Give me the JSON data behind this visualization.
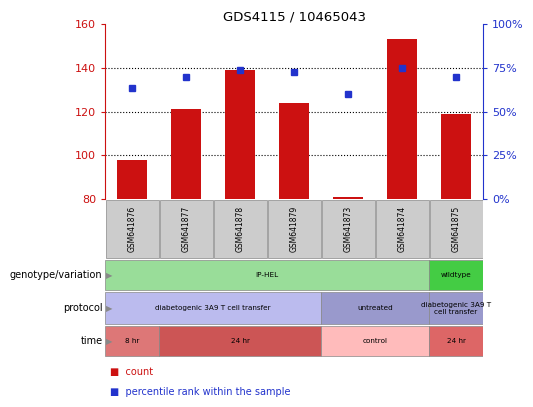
{
  "title": "GDS4115 / 10465043",
  "samples": [
    "GSM641876",
    "GSM641877",
    "GSM641878",
    "GSM641879",
    "GSM641873",
    "GSM641874",
    "GSM641875"
  ],
  "bar_values": [
    98,
    121,
    139,
    124,
    81,
    153,
    119
  ],
  "dot_values": [
    131,
    136,
    139,
    138,
    128,
    140,
    136
  ],
  "ylim_left": [
    80,
    160
  ],
  "ylim_right": [
    0,
    100
  ],
  "yticks_left": [
    80,
    100,
    120,
    140,
    160
  ],
  "yticks_right": [
    0,
    25,
    50,
    75,
    100
  ],
  "ytick_labels_right": [
    "0%",
    "25%",
    "50%",
    "75%",
    "100%"
  ],
  "bar_color": "#cc1111",
  "dot_color": "#2233cc",
  "annotation_rows": {
    "genotype": {
      "label": "genotype/variation",
      "groups": [
        {
          "span": [
            0,
            6
          ],
          "text": "IP-HEL",
          "color": "#99dd99"
        },
        {
          "span": [
            6,
            7
          ],
          "text": "wildtype",
          "color": "#44cc44"
        }
      ]
    },
    "protocol": {
      "label": "protocol",
      "groups": [
        {
          "span": [
            0,
            4
          ],
          "text": "diabetogenic 3A9 T cell transfer",
          "color": "#bbbbee"
        },
        {
          "span": [
            4,
            6
          ],
          "text": "untreated",
          "color": "#9999cc"
        },
        {
          "span": [
            6,
            7
          ],
          "text": "diabetogenic 3A9 T\ncell transfer",
          "color": "#9999cc"
        }
      ]
    },
    "time": {
      "label": "time",
      "groups": [
        {
          "span": [
            0,
            1
          ],
          "text": "8 hr",
          "color": "#dd7777"
        },
        {
          "span": [
            1,
            4
          ],
          "text": "24 hr",
          "color": "#cc5555"
        },
        {
          "span": [
            4,
            6
          ],
          "text": "control",
          "color": "#ffbbbb"
        },
        {
          "span": [
            6,
            7
          ],
          "text": "24 hr",
          "color": "#dd6666"
        }
      ]
    }
  },
  "legend_items": [
    {
      "color": "#cc1111",
      "label": "count"
    },
    {
      "color": "#2233cc",
      "label": "percentile rank within the sample"
    }
  ]
}
